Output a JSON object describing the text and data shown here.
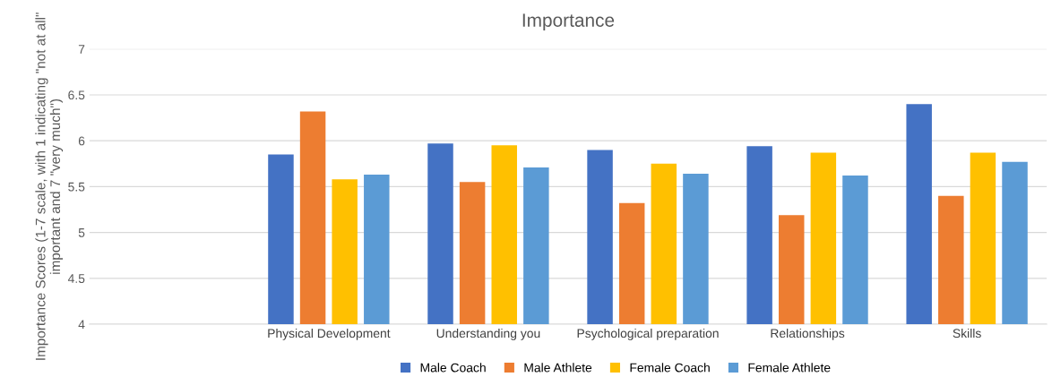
{
  "chart_data": {
    "type": "bar",
    "title": "Importance",
    "ylabel": "Importance Scores (1-7 scale, with 1 indicating \"not at all\" important and 7 \"very much\")",
    "categories": [
      null,
      "Physical Development",
      "Understanding you",
      "Psychological preparation",
      "Relationships",
      "Skills"
    ],
    "series": [
      {
        "name": "Male Coach",
        "color": "#4472c4",
        "values": [
          null,
          5.85,
          5.97,
          5.9,
          5.94,
          6.4
        ]
      },
      {
        "name": "Male Athlete",
        "color": "#ed7d31",
        "values": [
          null,
          6.32,
          5.55,
          5.32,
          5.19,
          5.4
        ]
      },
      {
        "name": "Female Coach",
        "color": "#ffc000",
        "values": [
          null,
          5.58,
          5.95,
          5.75,
          5.87,
          5.87
        ]
      },
      {
        "name": "Female Athlete",
        "color": "#5b9bd5",
        "values": [
          null,
          5.63,
          5.71,
          5.64,
          5.62,
          5.77
        ]
      }
    ],
    "ylim": [
      4,
      7
    ],
    "yticks": [
      4,
      4.5,
      5,
      5.5,
      6,
      6.5,
      7
    ],
    "grid": "y",
    "legend": "bottom"
  }
}
